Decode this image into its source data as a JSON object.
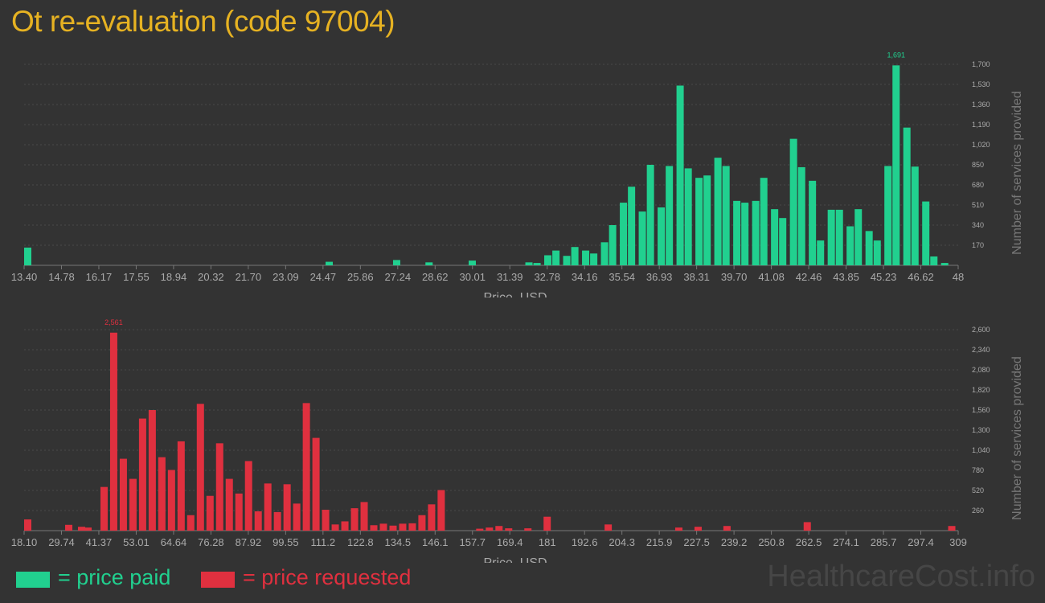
{
  "title": "Ot re-evaluation (code 97004)",
  "watermark": "HealthcareCost.info",
  "legend": {
    "paid": {
      "label": "= price paid",
      "color": "#21d08f"
    },
    "requested": {
      "label": "= price requested",
      "color": "#e0303f"
    }
  },
  "colors": {
    "background": "#333333",
    "tick_text": "#aaaaaa",
    "title": "#e6b222"
  },
  "chart_data": [
    {
      "type": "bar",
      "series_name": "price paid",
      "color": "#21d08f",
      "xlabel": "Price, USD",
      "ylabel": "Number of services provided",
      "ylim": [
        0,
        1700
      ],
      "xlim": [
        13.4,
        48
      ],
      "x_ticks": [
        "13.40",
        "14.78",
        "16.17",
        "17.55",
        "18.94",
        "20.32",
        "21.70",
        "23.09",
        "24.47",
        "25.86",
        "27.24",
        "28.62",
        "30.01",
        "31.39",
        "32.78",
        "34.16",
        "35.54",
        "36.93",
        "38.31",
        "39.70",
        "41.08",
        "42.46",
        "43.85",
        "45.23",
        "46.62",
        "48"
      ],
      "y_ticks": [
        "170",
        "340",
        "510",
        "680",
        "850",
        "1,020",
        "1,190",
        "1,360",
        "1,530",
        "1,700"
      ],
      "peak_label": "1,691",
      "x": [
        13.4,
        24.7,
        27.2,
        28.4,
        30.0,
        32.1,
        32.4,
        32.8,
        33.1,
        33.5,
        33.8,
        34.2,
        34.5,
        34.9,
        35.2,
        35.6,
        35.9,
        36.3,
        36.6,
        37.0,
        37.3,
        37.7,
        38.0,
        38.4,
        38.7,
        39.1,
        39.4,
        39.8,
        40.1,
        40.5,
        40.8,
        41.2,
        41.5,
        41.9,
        42.2,
        42.6,
        42.9,
        43.3,
        43.6,
        44.0,
        44.3,
        44.7,
        45.0,
        45.4,
        45.7,
        46.1,
        46.4,
        46.8,
        47.1,
        47.5
      ],
      "values": [
        150,
        30,
        45,
        25,
        40,
        25,
        20,
        85,
        125,
        80,
        155,
        125,
        100,
        195,
        340,
        530,
        665,
        455,
        850,
        490,
        840,
        1520,
        820,
        740,
        760,
        910,
        840,
        545,
        530,
        545,
        740,
        475,
        400,
        1070,
        830,
        715,
        210,
        470,
        470,
        330,
        475,
        290,
        210,
        840,
        1691,
        1165,
        835,
        540,
        75,
        20
      ]
    },
    {
      "type": "bar",
      "series_name": "price requested",
      "color": "#e0303f",
      "xlabel": "Price, USD",
      "ylabel": "Number of services provided",
      "ylim": [
        0,
        2600
      ],
      "xlim": [
        18.1,
        309
      ],
      "x_ticks": [
        "18.10",
        "29.74",
        "41.37",
        "53.01",
        "64.64",
        "76.28",
        "87.92",
        "99.55",
        "111.2",
        "122.8",
        "134.5",
        "146.1",
        "157.7",
        "169.4",
        "181",
        "192.6",
        "204.3",
        "215.9",
        "227.5",
        "239.2",
        "250.8",
        "262.5",
        "274.1",
        "285.7",
        "297.4",
        "309"
      ],
      "y_ticks": [
        "260",
        "520",
        "780",
        "1,040",
        "1,300",
        "1,560",
        "1,820",
        "2,080",
        "2,340",
        "2,600"
      ],
      "peak_label": "2,561",
      "x": [
        18.1,
        32.0,
        36.0,
        38.0,
        43.0,
        46.0,
        49.0,
        52.0,
        55.0,
        58.0,
        61.0,
        64.0,
        67.0,
        70.0,
        73.0,
        76.0,
        79.0,
        82.0,
        85.0,
        88.0,
        91.0,
        94.0,
        97.0,
        100.0,
        103.0,
        106.0,
        109.0,
        112.0,
        115.0,
        118.0,
        121.0,
        124.0,
        127.0,
        130.0,
        133.0,
        136.0,
        139.0,
        142.0,
        145.0,
        148.0,
        160.0,
        163.0,
        166.0,
        169.0,
        175.0,
        181.0,
        200.0,
        222.0,
        228.0,
        237.0,
        262.0,
        307.0
      ],
      "values": [
        145,
        75,
        50,
        40,
        565,
        2561,
        930,
        670,
        1450,
        1560,
        950,
        785,
        1155,
        200,
        1640,
        450,
        1130,
        670,
        480,
        900,
        250,
        610,
        240,
        600,
        350,
        1650,
        1200,
        270,
        80,
        120,
        290,
        370,
        70,
        90,
        65,
        90,
        95,
        200,
        340,
        525,
        25,
        40,
        60,
        30,
        30,
        180,
        80,
        40,
        50,
        60,
        110,
        60
      ]
    }
  ]
}
